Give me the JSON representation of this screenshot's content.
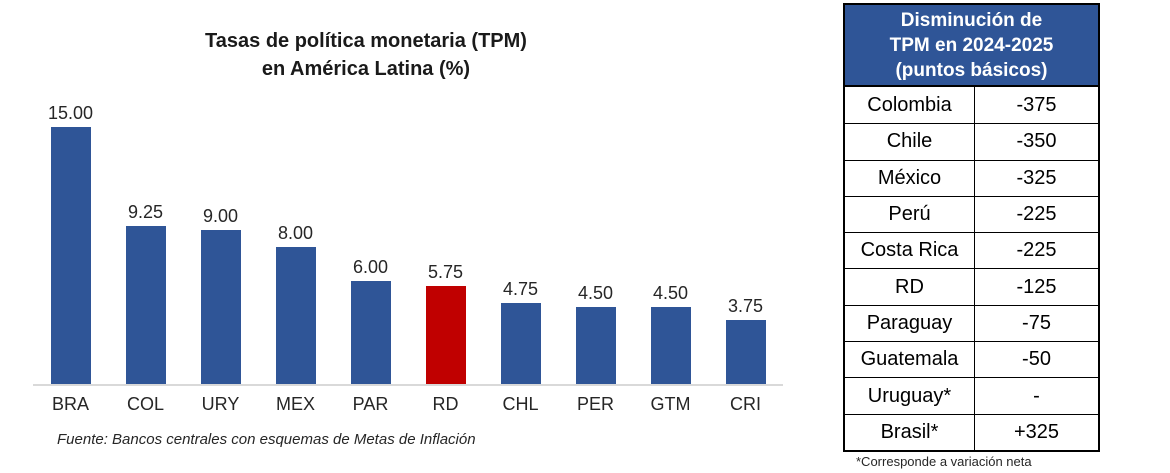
{
  "chart": {
    "title_line1": "Tasas de política monetaria (TPM)",
    "title_line2": "en América Latina (%)",
    "source_note": "Fuente: Bancos centrales con esquemas de Metas de Inflación"
  },
  "chart_data": {
    "type": "bar",
    "title": "Tasas de política monetaria (TPM) en América Latina (%)",
    "categories": [
      "BRA",
      "COL",
      "URY",
      "MEX",
      "PAR",
      "RD",
      "CHL",
      "PER",
      "GTM",
      "CRI"
    ],
    "values": [
      15.0,
      9.25,
      9.0,
      8.0,
      6.0,
      5.75,
      4.75,
      4.5,
      4.5,
      3.75
    ],
    "value_labels": [
      "15.00",
      "9.25",
      "9.00",
      "8.00",
      "6.00",
      "5.75",
      "4.75",
      "4.50",
      "4.50",
      "3.75"
    ],
    "colors": [
      "#2F5597",
      "#2F5597",
      "#2F5597",
      "#2F5597",
      "#2F5597",
      "#C00000",
      "#2F5597",
      "#2F5597",
      "#2F5597",
      "#2F5597"
    ],
    "bar_color": "#2F5597",
    "highlight_color": "#C00000",
    "highlighted_category": "RD",
    "xlabel": "",
    "ylabel": "",
    "ylim": [
      0,
      16
    ],
    "grid": false,
    "legend": false,
    "axis_line_color": "#D9D9D9"
  },
  "table": {
    "header_lines": [
      "Disminución de",
      "TPM en 2024-2025",
      "(puntos básicos)"
    ],
    "header_bg": "#2F5597",
    "header_text_color": "#FFFFFF",
    "rows": [
      {
        "country": "Colombia",
        "value": "-375"
      },
      {
        "country": "Chile",
        "value": "-350"
      },
      {
        "country": "México",
        "value": "-325"
      },
      {
        "country": "Perú",
        "value": "-225"
      },
      {
        "country": "Costa Rica",
        "value": "-225"
      },
      {
        "country": "RD",
        "value": "-125"
      },
      {
        "country": "Paraguay",
        "value": "-75"
      },
      {
        "country": "Guatemala",
        "value": "-50"
      },
      {
        "country": "Uruguay*",
        "value": "-"
      },
      {
        "country": "Brasil*",
        "value": "+325"
      }
    ],
    "footnote": "*Corresponde a variación neta"
  }
}
